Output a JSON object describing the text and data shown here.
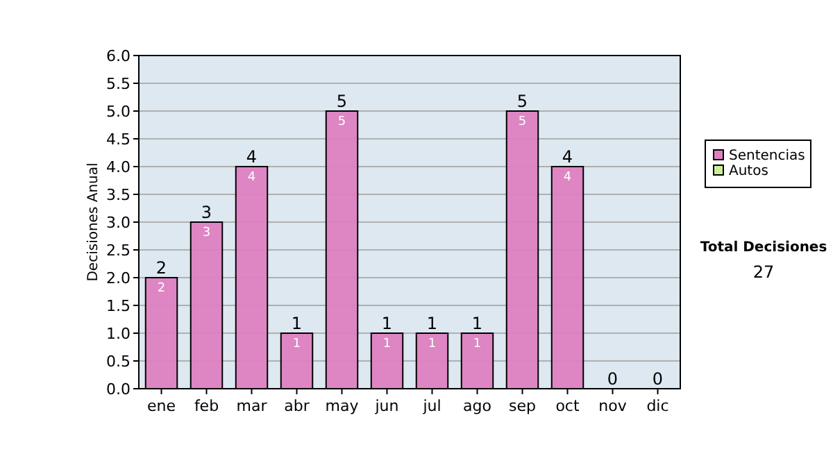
{
  "chart_data": {
    "type": "bar",
    "ylabel": "Decisiones Anual",
    "stacked": true,
    "categories": [
      "ene",
      "feb",
      "mar",
      "abr",
      "may",
      "jun",
      "jul",
      "ago",
      "sep",
      "oct",
      "nov",
      "dic"
    ],
    "series": [
      {
        "name": "Sentencias",
        "color": "#dd80c0",
        "values": [
          2,
          3,
          4,
          1,
          5,
          1,
          1,
          1,
          5,
          4,
          0,
          0
        ],
        "value_labels": [
          "2",
          "3",
          "4",
          "1",
          "5",
          "1",
          "1",
          "1",
          "5",
          "4",
          null,
          null
        ]
      },
      {
        "name": "Autos",
        "color": "#ccee99",
        "values": [
          0,
          0,
          0,
          0,
          0,
          0,
          0,
          0,
          0,
          0,
          0,
          0
        ]
      }
    ],
    "totals": [
      "2",
      "3",
      "4",
      "1",
      "5",
      "1",
      "1",
      "1",
      "5",
      "4",
      "0",
      "0"
    ],
    "ylim": [
      0,
      6
    ],
    "yticks": [
      {
        "value": 0,
        "label": "0.0"
      },
      {
        "value": 0.5,
        "label": "0.5"
      },
      {
        "value": 1,
        "label": "1.0"
      },
      {
        "value": 1.5,
        "label": "1.5"
      },
      {
        "value": 2,
        "label": "2.0"
      },
      {
        "value": 2.5,
        "label": "2.5"
      },
      {
        "value": 3,
        "label": "3.0"
      },
      {
        "value": 3.5,
        "label": "3.5"
      },
      {
        "value": 4,
        "label": "4.0"
      },
      {
        "value": 4.5,
        "label": "4.5"
      },
      {
        "value": 5,
        "label": "5.0"
      },
      {
        "value": 5.5,
        "label": "5.5"
      },
      {
        "value": 6,
        "label": "6.0"
      }
    ],
    "grid": "y",
    "legend": "right",
    "annotations": [
      "Total Decisiones",
      "27"
    ]
  }
}
